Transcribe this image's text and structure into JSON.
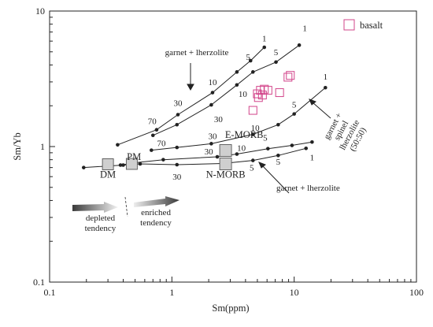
{
  "chart_data": {
    "type": "scatter",
    "title": "",
    "xlabel": "Sm(ppm)",
    "ylabel": "Sm/Yb",
    "x_scale": "log",
    "y_scale": "log",
    "xlim": [
      0.1,
      100
    ],
    "ylim": [
      0.1,
      10
    ],
    "x_ticks": [
      {
        "v": 0.1,
        "label": "0.1"
      },
      {
        "v": 1,
        "label": "1"
      },
      {
        "v": 10,
        "label": "10"
      },
      {
        "v": 100,
        "label": "100"
      }
    ],
    "y_ticks": [
      {
        "v": 0.1,
        "label": "0.1"
      },
      {
        "v": 1,
        "label": "1"
      },
      {
        "v": 10,
        "label": "10"
      }
    ],
    "legend": {
      "label": "basalt",
      "color": "#d2448a",
      "position": "top-right"
    },
    "samples": {
      "name": "basalt",
      "color": "#d2448a",
      "points": [
        {
          "x": 5.3,
          "y": 2.6
        },
        {
          "x": 5.7,
          "y": 2.65
        },
        {
          "x": 6.1,
          "y": 2.6
        },
        {
          "x": 5.0,
          "y": 2.45
        },
        {
          "x": 5.5,
          "y": 2.4
        },
        {
          "x": 5.1,
          "y": 2.3
        },
        {
          "x": 7.6,
          "y": 2.5
        },
        {
          "x": 8.9,
          "y": 3.25
        },
        {
          "x": 9.3,
          "y": 3.35
        },
        {
          "x": 4.6,
          "y": 1.85
        }
      ]
    },
    "curves": [
      {
        "points": [
          {
            "x": 0.36,
            "y": 1.03
          },
          {
            "x": 0.75,
            "y": 1.33
          },
          {
            "x": 1.12,
            "y": 1.72
          },
          {
            "x": 2.15,
            "y": 2.5
          },
          {
            "x": 3.4,
            "y": 3.55
          },
          {
            "x": 4.4,
            "y": 4.3
          },
          {
            "x": 5.7,
            "y": 5.4
          }
        ],
        "labels": [
          {
            "text": "70",
            "x": 0.69,
            "y": 1.55
          },
          {
            "text": "30",
            "x": 1.12,
            "y": 2.1
          },
          {
            "text": "10",
            "x": 2.15,
            "y": 3.0
          },
          {
            "text": "5",
            "x": 4.2,
            "y": 4.6
          },
          {
            "text": "1",
            "x": 5.7,
            "y": 6.3
          }
        ]
      },
      {
        "points": [
          {
            "x": 0.7,
            "y": 1.21
          },
          {
            "x": 1.1,
            "y": 1.45
          },
          {
            "x": 2.1,
            "y": 2.03
          },
          {
            "x": 3.4,
            "y": 2.85
          },
          {
            "x": 4.6,
            "y": 3.55
          },
          {
            "x": 7.1,
            "y": 4.2
          },
          {
            "x": 11,
            "y": 5.6
          }
        ],
        "labels": [
          {
            "text": "30",
            "x": 2.4,
            "y": 1.6
          },
          {
            "text": "10",
            "x": 3.8,
            "y": 2.45
          },
          {
            "text": "5",
            "x": 7.1,
            "y": 5.0
          },
          {
            "text": "1",
            "x": 12.2,
            "y": 7.5
          }
        ]
      },
      {
        "points": [
          {
            "x": 0.68,
            "y": 0.94
          },
          {
            "x": 1.1,
            "y": 0.985
          },
          {
            "x": 2.1,
            "y": 1.05
          },
          {
            "x": 4.6,
            "y": 1.23
          },
          {
            "x": 7.4,
            "y": 1.45
          },
          {
            "x": 10,
            "y": 1.74
          },
          {
            "x": 18,
            "y": 2.72
          }
        ],
        "labels": [
          {
            "text": "70",
            "x": 0.82,
            "y": 1.06
          },
          {
            "text": "30",
            "x": 2.15,
            "y": 1.2
          },
          {
            "text": "10",
            "x": 4.8,
            "y": 1.38
          },
          {
            "text": "5",
            "x": 10,
            "y": 2.05
          },
          {
            "text": "1",
            "x": 18,
            "y": 3.3
          }
        ]
      },
      {
        "points": [
          {
            "x": 0.38,
            "y": 0.73
          },
          {
            "x": 0.5,
            "y": 0.76
          },
          {
            "x": 0.85,
            "y": 0.8
          },
          {
            "x": 2.35,
            "y": 0.84
          },
          {
            "x": 3.4,
            "y": 0.88
          },
          {
            "x": 6.1,
            "y": 0.965
          },
          {
            "x": 9.6,
            "y": 1.02
          },
          {
            "x": 14,
            "y": 1.08
          }
        ],
        "labels": [
          {
            "text": "30",
            "x": 2.0,
            "y": 0.925
          },
          {
            "text": "10",
            "x": 3.7,
            "y": 0.98
          },
          {
            "text": "5",
            "x": 5.8,
            "y": 1.17
          }
        ]
      },
      {
        "points": [
          {
            "x": 0.19,
            "y": 0.7
          },
          {
            "x": 0.4,
            "y": 0.73
          },
          {
            "x": 0.55,
            "y": 0.745
          },
          {
            "x": 1.1,
            "y": 0.735
          },
          {
            "x": 2.6,
            "y": 0.75
          },
          {
            "x": 4.6,
            "y": 0.79
          },
          {
            "x": 7.4,
            "y": 0.86
          },
          {
            "x": 12.5,
            "y": 0.97
          }
        ],
        "labels": [
          {
            "text": "30",
            "x": 1.1,
            "y": 0.6
          },
          {
            "text": "5",
            "x": 4.5,
            "y": 0.7
          },
          {
            "text": "5",
            "x": 7.4,
            "y": 0.775
          },
          {
            "text": "1",
            "x": 14,
            "y": 0.835
          }
        ]
      }
    ],
    "reference_points": [
      {
        "label": "DM",
        "x": 0.3,
        "y": 0.74,
        "label_x": 0.3,
        "label_y": 0.62
      },
      {
        "label": "PM",
        "x": 0.47,
        "y": 0.745,
        "label_x": 0.49,
        "label_y": 0.84
      },
      {
        "label": "E-MORB",
        "x": 2.75,
        "y": 0.935,
        "label_x": 3.9,
        "label_y": 1.22
      },
      {
        "label": "N-MORB",
        "x": 2.75,
        "y": 0.745,
        "label_x": 2.75,
        "label_y": 0.62
      }
    ],
    "annotations": [
      {
        "id": "garnet-lherzolite-top",
        "lines": [
          "garnet + lherzolite"
        ],
        "x": 1.6,
        "y": 5.0
      },
      {
        "id": "garnet-lherzolite-bottom",
        "lines": [
          "garnet + lherzolite"
        ],
        "x": 13,
        "y": 0.5
      },
      {
        "id": "garnet-spinel-lherzolite",
        "lines": [
          "garnet +",
          "spinel",
          "lherzolite",
          "(50:50)"
        ],
        "x": 26,
        "y": 1.27
      },
      {
        "id": "depleted-tendency",
        "lines": [
          "depleted",
          "tendency"
        ],
        "x": 0.26,
        "y": 0.3
      },
      {
        "id": "enriched-tendency",
        "lines": [
          "enriched",
          "tendency"
        ],
        "x": 0.74,
        "y": 0.33
      }
    ]
  }
}
